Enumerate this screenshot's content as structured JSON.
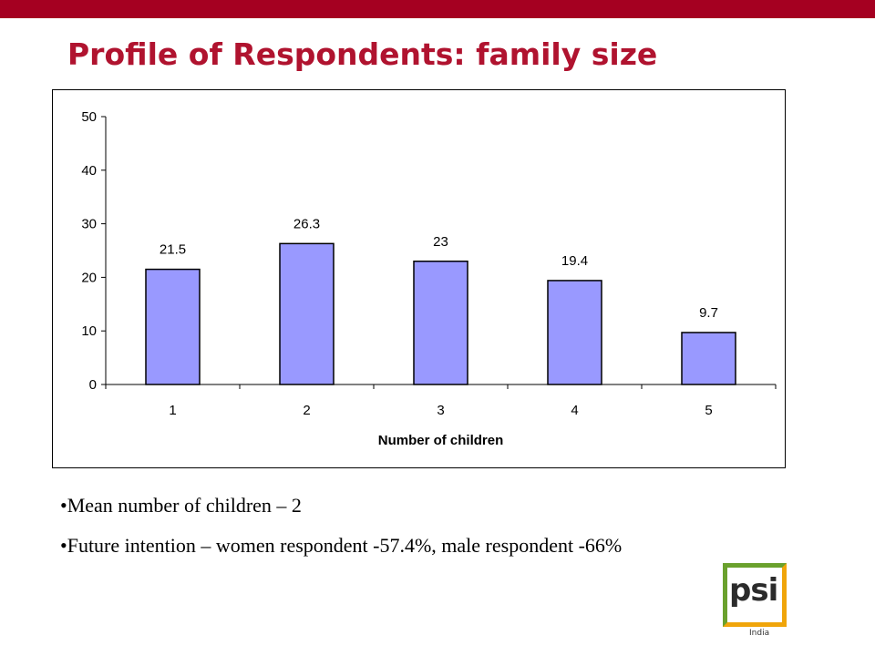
{
  "slide": {
    "title": "Profile of Respondents: family size",
    "bullets": [
      "Mean number of children – 2",
      "Future intention – women respondent -57.4%, male respondent -66%"
    ]
  },
  "logo": {
    "text": "psi",
    "subtext": "India"
  },
  "colors": {
    "top_bar": "#a50021",
    "title": "#b0132f",
    "bar_fill": "#9999ff",
    "logo_green": "#6aa12d",
    "logo_orange": "#f0a50a"
  },
  "chart_data": {
    "type": "bar",
    "categories": [
      "1",
      "2",
      "3",
      "4",
      "5"
    ],
    "values": [
      21.5,
      26.3,
      23,
      19.4,
      9.7
    ],
    "data_labels": [
      "21.5",
      "26.3",
      "23",
      "19.4",
      "9.7"
    ],
    "title": "",
    "xlabel": "Number of children",
    "ylabel": "",
    "ylim": [
      0,
      50
    ],
    "yticks": [
      0,
      10,
      20,
      30,
      40,
      50
    ],
    "grid": false,
    "legend": "none"
  }
}
